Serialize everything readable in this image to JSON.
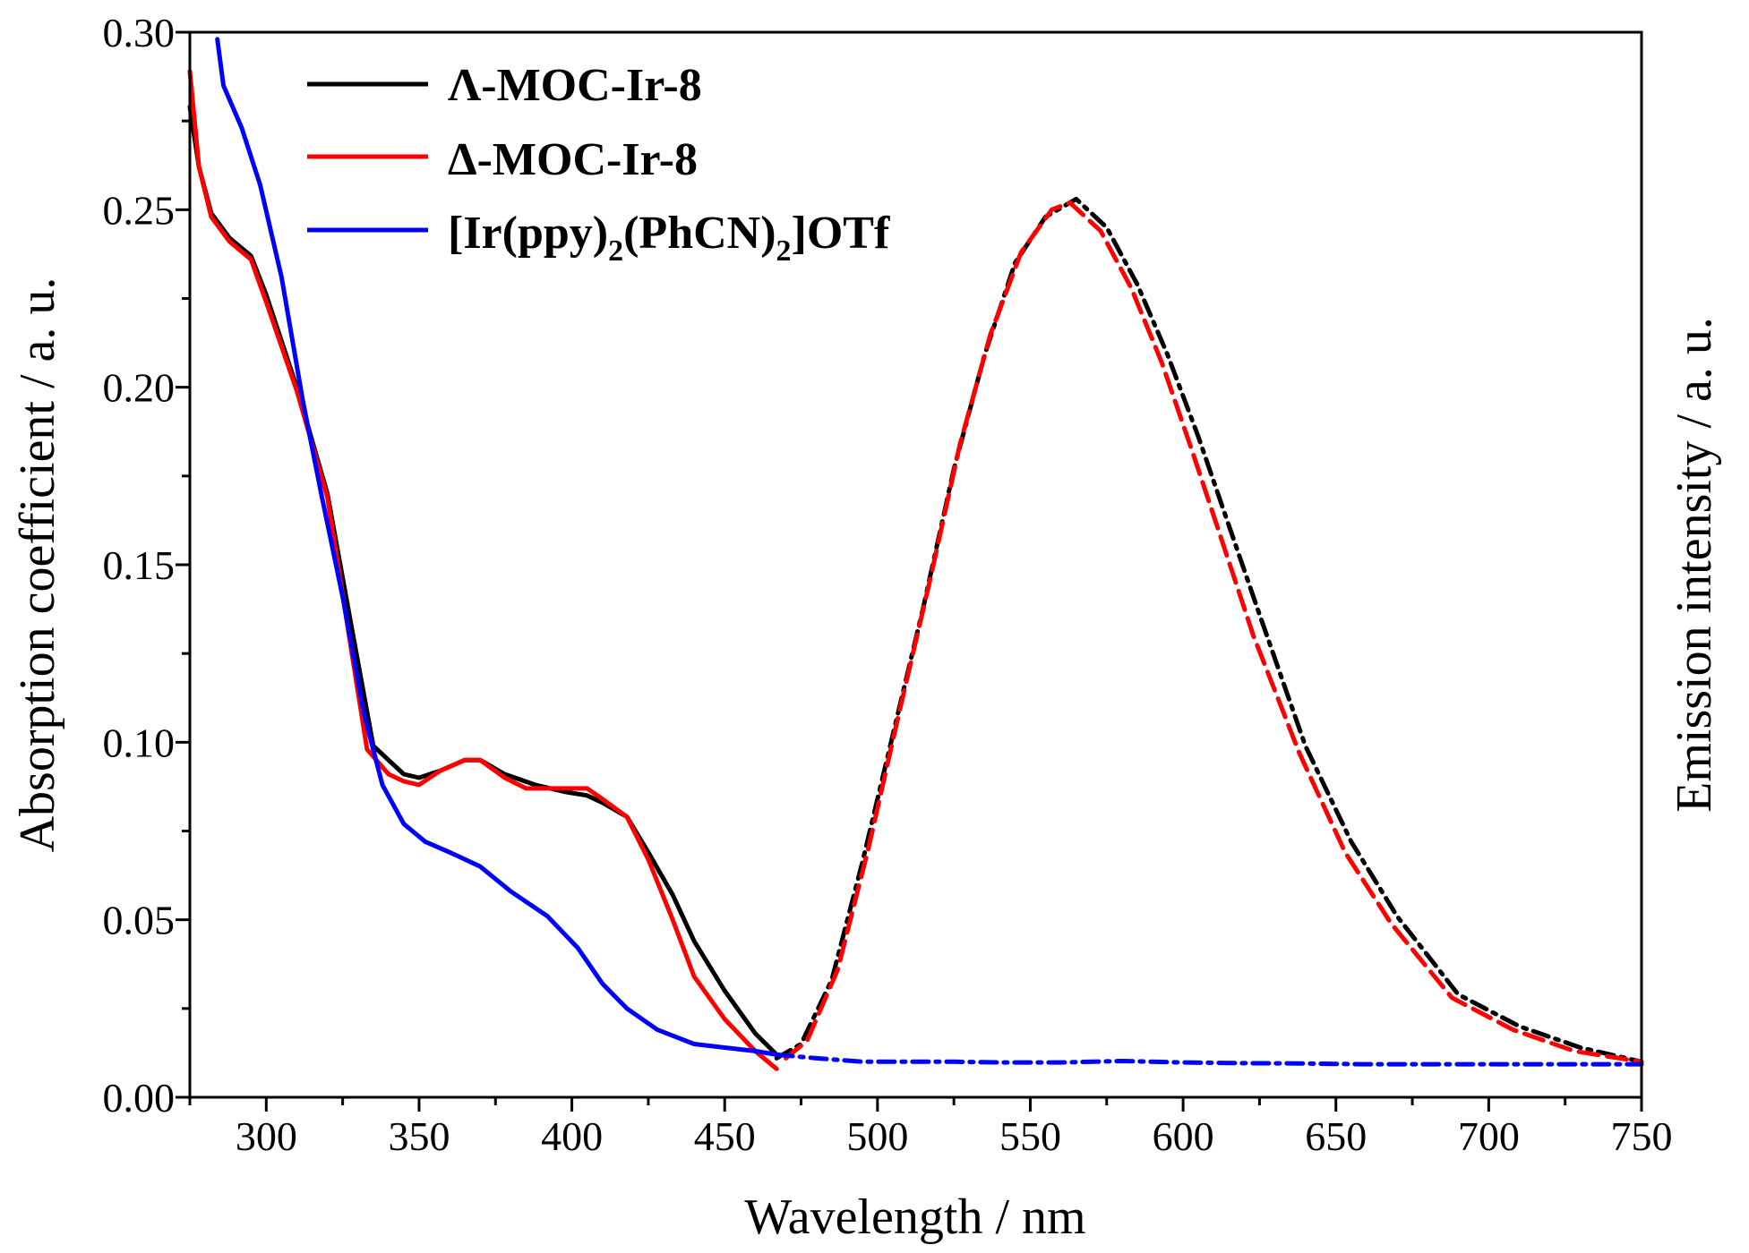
{
  "chart_data": {
    "type": "line",
    "xlabel": "Wavelength / nm",
    "ylabel_left": "Absorption coefficient / a. u.",
    "ylabel_right": "Emission intensity / a. u.",
    "xlim": [
      275,
      750
    ],
    "ylim": [
      0,
      0.3
    ],
    "x_ticks": [
      300,
      350,
      400,
      450,
      500,
      550,
      600,
      650,
      700,
      750
    ],
    "x_tick_labels": [
      "300",
      "350",
      "400",
      "450",
      "500",
      "550",
      "600",
      "650",
      "700",
      "750"
    ],
    "y_ticks": [
      0,
      0.05,
      0.1,
      0.15,
      0.2,
      0.25,
      0.3
    ],
    "y_tick_labels": [
      "0.00",
      "0.05",
      "0.10",
      "0.15",
      "0.20",
      "0.25",
      "0.30"
    ],
    "grid": false,
    "legend_position": "top-left",
    "legend": [
      {
        "label": "Λ-MOC-Ir-8",
        "color": "#000000"
      },
      {
        "label": "Δ-MOC-Ir-8",
        "color": "#ff0000"
      },
      {
        "label_parts": [
          "[Ir(ppy)",
          "2",
          "(PhCN)",
          "2",
          "]OTf"
        ],
        "color": "#0000ff"
      }
    ],
    "series": [
      {
        "name": "Λ-MOC-Ir-8 absorption",
        "color": "#000000",
        "style": "solid",
        "x": [
          275,
          278,
          282,
          288,
          295,
          300,
          310,
          320,
          328,
          335,
          340,
          345,
          350,
          357,
          365,
          370,
          378,
          388,
          398,
          405,
          410,
          418,
          425,
          433,
          440,
          450,
          460,
          467
        ],
        "y": [
          0.279,
          0.262,
          0.249,
          0.242,
          0.237,
          0.226,
          0.2,
          0.17,
          0.132,
          0.099,
          0.095,
          0.091,
          0.09,
          0.092,
          0.095,
          0.095,
          0.091,
          0.088,
          0.086,
          0.085,
          0.083,
          0.079,
          0.069,
          0.057,
          0.044,
          0.03,
          0.018,
          0.012
        ]
      },
      {
        "name": "Δ-MOC-Ir-8 absorption",
        "color": "#ff0000",
        "style": "solid",
        "x": [
          275,
          278,
          282,
          288,
          295,
          300,
          310,
          320,
          328,
          333,
          340,
          345,
          350,
          357,
          365,
          370,
          378,
          385,
          398,
          405,
          410,
          418,
          425,
          433,
          440,
          450,
          460,
          467
        ],
        "y": [
          0.289,
          0.262,
          0.248,
          0.241,
          0.236,
          0.224,
          0.199,
          0.169,
          0.125,
          0.098,
          0.091,
          0.089,
          0.088,
          0.092,
          0.095,
          0.095,
          0.09,
          0.087,
          0.087,
          0.087,
          0.084,
          0.079,
          0.067,
          0.05,
          0.034,
          0.022,
          0.013,
          0.008
        ]
      },
      {
        "name": "[Ir(ppy)2(PhCN)2]OTf absorption",
        "color": "#0000ff",
        "style": "solid",
        "x": [
          284,
          286,
          292,
          298,
          305,
          312,
          318,
          325,
          332,
          338,
          345,
          352,
          360,
          370,
          380,
          392,
          402,
          410,
          418,
          428,
          440,
          450,
          460,
          467
        ],
        "y": [
          0.298,
          0.285,
          0.273,
          0.257,
          0.231,
          0.196,
          0.17,
          0.141,
          0.108,
          0.088,
          0.077,
          0.072,
          0.069,
          0.065,
          0.058,
          0.051,
          0.042,
          0.032,
          0.025,
          0.019,
          0.015,
          0.014,
          0.013,
          0.012
        ]
      },
      {
        "name": "Λ-MOC-Ir-8 emission",
        "color": "#000000",
        "style": "dash-dot",
        "x": [
          467,
          475,
          485,
          495,
          505,
          515,
          525,
          535,
          545,
          555,
          565,
          575,
          585,
          595,
          605,
          615,
          625,
          640,
          655,
          670,
          690,
          710,
          730,
          750
        ],
        "y": [
          0.011,
          0.015,
          0.033,
          0.066,
          0.102,
          0.138,
          0.177,
          0.209,
          0.235,
          0.248,
          0.253,
          0.245,
          0.229,
          0.209,
          0.186,
          0.161,
          0.136,
          0.099,
          0.072,
          0.051,
          0.029,
          0.02,
          0.014,
          0.01
        ]
      },
      {
        "name": "Δ-MOC-Ir-8 emission",
        "color": "#ff0000",
        "style": "dashed",
        "x": [
          470,
          477,
          487,
          497,
          507,
          517,
          527,
          537,
          547,
          557,
          563,
          573,
          583,
          593,
          603,
          613,
          623,
          638,
          653,
          668,
          688,
          708,
          728,
          750
        ],
        "y": [
          0.011,
          0.016,
          0.036,
          0.07,
          0.108,
          0.145,
          0.184,
          0.215,
          0.238,
          0.25,
          0.252,
          0.244,
          0.228,
          0.207,
          0.182,
          0.156,
          0.13,
          0.097,
          0.069,
          0.049,
          0.028,
          0.019,
          0.013,
          0.01
        ]
      },
      {
        "name": "[Ir(ppy)2(PhCN)2]OTf emission",
        "color": "#0000ff",
        "style": "dash-dot",
        "x": [
          467,
          480,
          495,
          510,
          525,
          540,
          560,
          580,
          600,
          620,
          640,
          660,
          680,
          700,
          720,
          750
        ],
        "y": [
          0.012,
          0.011,
          0.01,
          0.01,
          0.01,
          0.0098,
          0.0098,
          0.0102,
          0.0098,
          0.0096,
          0.0095,
          0.0093,
          0.0093,
          0.0093,
          0.0093,
          0.0093
        ]
      }
    ]
  }
}
